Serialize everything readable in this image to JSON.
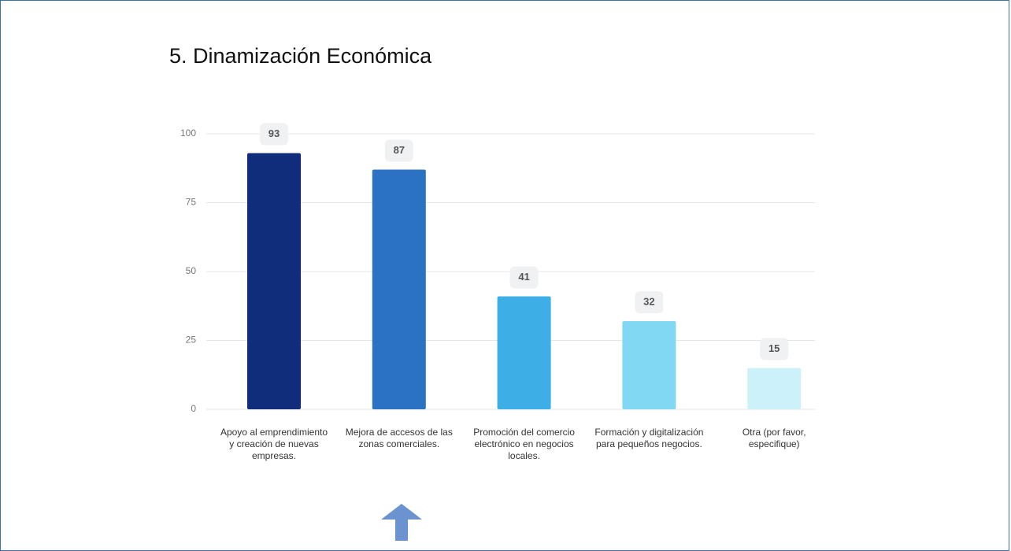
{
  "chart_data": {
    "type": "bar",
    "title": "5. Dinamización Económica",
    "categories": [
      "Apoyo al emprendimiento y creación de nuevas empresas.",
      "Mejora de accesos de las zonas comerciales.",
      "Promoción del comercio electrónico en negocios locales.",
      "Formación y digitalización para pequeños negocios.",
      "Otra (por favor, especifique)"
    ],
    "values": [
      93,
      87,
      41,
      32,
      15
    ],
    "colors": [
      "#0f2d7a",
      "#2b72c4",
      "#3daee6",
      "#80d8f3",
      "#ccf1fa"
    ],
    "ylim": [
      0,
      100
    ],
    "yticks": [
      0,
      25,
      50,
      75,
      100
    ],
    "grid": true
  }
}
